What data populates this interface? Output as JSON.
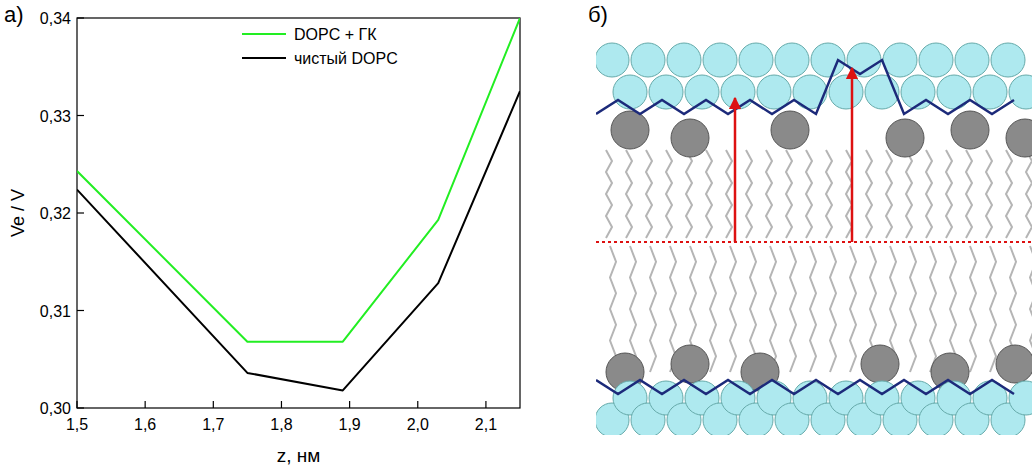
{
  "panel_labels": {
    "a": "а)",
    "b": "б)"
  },
  "chart_data": {
    "type": "line",
    "x_label": "z, нм",
    "y_label": "Ve / V",
    "x": [
      1.5,
      1.75,
      1.89,
      2.03,
      2.15
    ],
    "series": [
      {
        "name": "DOPC + ГК",
        "color": "#22ee22",
        "values": [
          0.3243,
          0.3068,
          0.3068,
          0.3193,
          0.34
        ]
      },
      {
        "name": "чистый DOPC",
        "color": "#000000",
        "values": [
          0.3224,
          0.3036,
          0.3018,
          0.3128,
          0.3325
        ]
      }
    ],
    "xlim": [
      1.5,
      2.15
    ],
    "xticks": [
      {
        "value": 1.5,
        "label": "1,5"
      },
      {
        "value": 1.6,
        "label": "1,6"
      },
      {
        "value": 1.7,
        "label": "1,7"
      },
      {
        "value": 1.8,
        "label": "1,8"
      },
      {
        "value": 1.9,
        "label": "1,9"
      },
      {
        "value": 2.0,
        "label": "2,0"
      },
      {
        "value": 2.1,
        "label": "2,1"
      }
    ],
    "ylim": [
      0.3,
      0.34
    ],
    "yticks": [
      {
        "value": 0.3,
        "label": "0,30"
      },
      {
        "value": 0.31,
        "label": "0,31"
      },
      {
        "value": 0.32,
        "label": "0,32"
      },
      {
        "value": 0.33,
        "label": "0,33"
      },
      {
        "value": 0.34,
        "label": "0,34"
      }
    ],
    "legend": "top",
    "grid": false
  }
}
